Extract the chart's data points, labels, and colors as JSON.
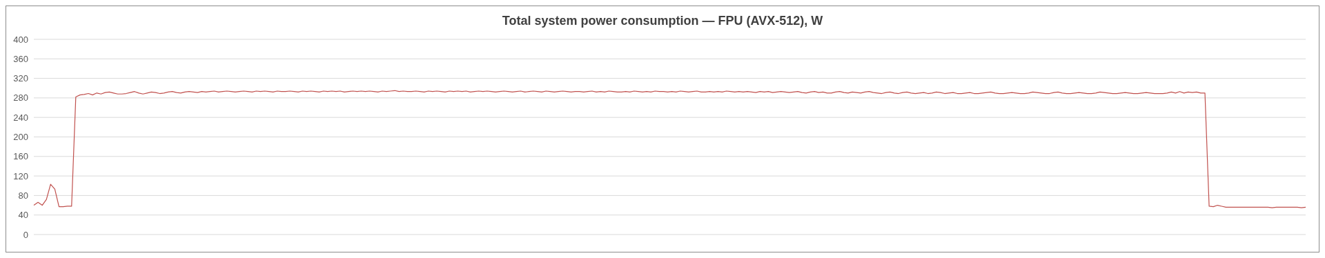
{
  "chart_data": {
    "type": "line",
    "title": "Total system power consumption — FPU (AVX-512), W",
    "categories": [
      null,
      null,
      null,
      null,
      null,
      null,
      null,
      null,
      null,
      null,
      null,
      null,
      null,
      null,
      null,
      null,
      null,
      null,
      null,
      null,
      null,
      null,
      null,
      null,
      null,
      null,
      null,
      null,
      null,
      null,
      null,
      null,
      null,
      null,
      null,
      null,
      null,
      null,
      null,
      null,
      null,
      null,
      null,
      null,
      null,
      null,
      null,
      null,
      null,
      null,
      null,
      null,
      null,
      null,
      null,
      null,
      null,
      null,
      null,
      null,
      null,
      null,
      null,
      null,
      null,
      null,
      null,
      null,
      null,
      null,
      null,
      null,
      null,
      null,
      null,
      null,
      null,
      null,
      null,
      null,
      null,
      null,
      null,
      null,
      null,
      null,
      null,
      null,
      null,
      null,
      null,
      null,
      null,
      null,
      null,
      null,
      null,
      null,
      null,
      null,
      null,
      null,
      null,
      null,
      null,
      null,
      null,
      null,
      null,
      null,
      null,
      null,
      null,
      null,
      null,
      null,
      null,
      null,
      null,
      null,
      null,
      null,
      null,
      null,
      null,
      null,
      null,
      null,
      null,
      null,
      null,
      null,
      null,
      null,
      null,
      null,
      null,
      null,
      null,
      null,
      null,
      null,
      null,
      null,
      null,
      null,
      null,
      null,
      null,
      null,
      null,
      null,
      null,
      null,
      null,
      null,
      null,
      null,
      null,
      null,
      null,
      null,
      null,
      null,
      null,
      null,
      null,
      null,
      null,
      null,
      null,
      null,
      null,
      null,
      null,
      null,
      null,
      null,
      null,
      null,
      null,
      null,
      null,
      null,
      null,
      null,
      null,
      null,
      null,
      null,
      null,
      null,
      null,
      null,
      null,
      null,
      null,
      null,
      null,
      null,
      null,
      null,
      null,
      null,
      null,
      null,
      null,
      null,
      null,
      null,
      null,
      null,
      null,
      null,
      null,
      null,
      null,
      null,
      null,
      null,
      null,
      null,
      null,
      null,
      null,
      null,
      null,
      null,
      null,
      null,
      null,
      null,
      null,
      null,
      null,
      null,
      null,
      null,
      null,
      null,
      null,
      null,
      null,
      null,
      null,
      null,
      null,
      null,
      null,
      null,
      null,
      null,
      null,
      null,
      null,
      null,
      null,
      null,
      null,
      null,
      null,
      null,
      null,
      null,
      null,
      null,
      null,
      null,
      null,
      null,
      null,
      null,
      null,
      null,
      null,
      null,
      null,
      null,
      null,
      null,
      null,
      null,
      null,
      null,
      null,
      null,
      null,
      null,
      null,
      null,
      null,
      null,
      null,
      null,
      null,
      null,
      null,
      null,
      null,
      null,
      null,
      null,
      null,
      null
    ],
    "series": [
      {
        "color": "#c0504d",
        "values": [
          60,
          66,
          60,
          72,
          103,
          93,
          57,
          57,
          58,
          58,
          282,
          286,
          287,
          289,
          286,
          290,
          288,
          291,
          292,
          290,
          288,
          288,
          289,
          291,
          293,
          290,
          288,
          290,
          292,
          291,
          289,
          290,
          292,
          293,
          291,
          290,
          292,
          293,
          292,
          291,
          293,
          292,
          293,
          294,
          292,
          293,
          294,
          293,
          292,
          293,
          294,
          293,
          292,
          294,
          293,
          294,
          293,
          292,
          294,
          293,
          293,
          294,
          293,
          292,
          294,
          293,
          294,
          293,
          292,
          294,
          293,
          294,
          293,
          294,
          292,
          293,
          294,
          293,
          294,
          293,
          294,
          293,
          292,
          294,
          293,
          294,
          295,
          293,
          294,
          293,
          293,
          294,
          293,
          292,
          294,
          293,
          294,
          293,
          292,
          294,
          293,
          294,
          293,
          294,
          292,
          293,
          294,
          293,
          294,
          293,
          292,
          293,
          294,
          293,
          292,
          293,
          294,
          292,
          293,
          294,
          293,
          292,
          294,
          293,
          292,
          293,
          294,
          293,
          292,
          293,
          293,
          292,
          293,
          294,
          292,
          293,
          292,
          294,
          293,
          292,
          292,
          293,
          292,
          294,
          293,
          292,
          293,
          292,
          294,
          293,
          293,
          292,
          293,
          292,
          294,
          293,
          292,
          293,
          294,
          292,
          292,
          293,
          292,
          293,
          292,
          294,
          293,
          292,
          293,
          292,
          293,
          292,
          291,
          293,
          292,
          293,
          291,
          292,
          293,
          292,
          291,
          292,
          293,
          291,
          290,
          292,
          293,
          291,
          292,
          290,
          290,
          292,
          293,
          291,
          290,
          292,
          291,
          290,
          292,
          293,
          291,
          290,
          289,
          291,
          292,
          290,
          289,
          291,
          292,
          290,
          289,
          290,
          291,
          289,
          290,
          292,
          291,
          289,
          290,
          291,
          289,
          289,
          290,
          291,
          289,
          289,
          290,
          291,
          292,
          290,
          289,
          289,
          290,
          291,
          290,
          289,
          289,
          290,
          292,
          291,
          290,
          289,
          289,
          291,
          292,
          290,
          289,
          289,
          290,
          291,
          290,
          289,
          289,
          290,
          292,
          291,
          290,
          289,
          289,
          290,
          291,
          290,
          289,
          289,
          290,
          291,
          290,
          289,
          289,
          289,
          290,
          292,
          290,
          293,
          290,
          292,
          291,
          292,
          290,
          290,
          58,
          57,
          60,
          58,
          56,
          56,
          56,
          56,
          56,
          56,
          56,
          56,
          56,
          56,
          56,
          55,
          56,
          56,
          56,
          56,
          56,
          56,
          55,
          56
        ]
      }
    ],
    "ylim": [
      0,
      400
    ],
    "yticks": [
      0,
      40,
      80,
      120,
      160,
      200,
      240,
      280,
      320,
      360,
      400
    ],
    "grid": "y",
    "tick_labels": "y"
  }
}
